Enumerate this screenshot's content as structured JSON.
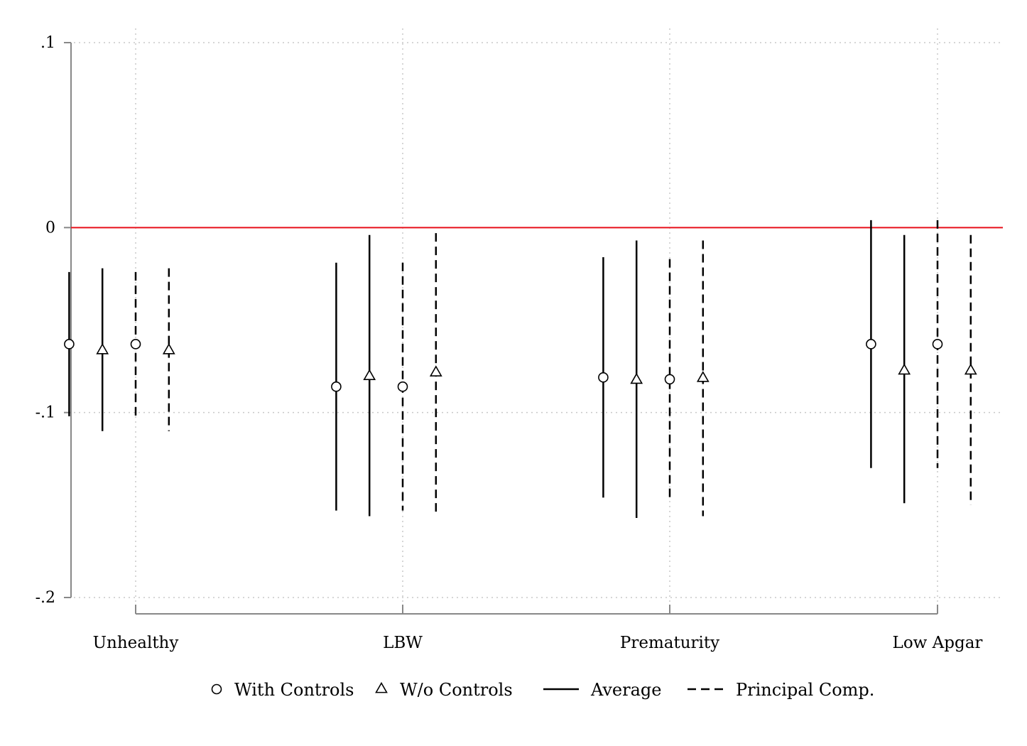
{
  "chart_data": {
    "type": "scatter",
    "title": "",
    "xlabel": "",
    "ylabel": "",
    "ylim": [
      -0.2,
      0.1
    ],
    "y_ticks": [
      {
        "value": 0.1,
        "label": ".1"
      },
      {
        "value": 0,
        "label": "0"
      },
      {
        "value": -0.1,
        "label": "-.1"
      },
      {
        "value": -0.2,
        "label": "-.2"
      }
    ],
    "categories": [
      "Unhealthy",
      "LBW",
      "Prematurity",
      "Low Apgar"
    ],
    "reference_line": {
      "y": 0,
      "color": "#e8101a"
    },
    "grid": true,
    "legend_position": "bottom",
    "legend": [
      {
        "marker": "circle",
        "label": "With Controls"
      },
      {
        "marker": "triangle",
        "label": "W/o Controls"
      },
      {
        "line": "solid",
        "label": "Average"
      },
      {
        "line": "dashed",
        "label": "Principal Comp."
      }
    ],
    "series": [
      {
        "label_key": "With Controls / Average",
        "marker": "circle",
        "line": "solid",
        "offset": -0.8,
        "points": [
          {
            "estimate": -0.063,
            "ci_low": -0.102,
            "ci_high": -0.024
          },
          {
            "estimate": -0.086,
            "ci_low": -0.153,
            "ci_high": -0.019
          },
          {
            "estimate": -0.081,
            "ci_low": -0.146,
            "ci_high": -0.016
          },
          {
            "estimate": -0.063,
            "ci_low": -0.13,
            "ci_high": 0.004
          }
        ]
      },
      {
        "label_key": "W/o Controls / Average",
        "marker": "triangle",
        "line": "solid",
        "offset": -0.4,
        "points": [
          {
            "estimate": -0.066,
            "ci_low": -0.11,
            "ci_high": -0.022
          },
          {
            "estimate": -0.08,
            "ci_low": -0.156,
            "ci_high": -0.004
          },
          {
            "estimate": -0.082,
            "ci_low": -0.157,
            "ci_high": -0.007
          },
          {
            "estimate": -0.077,
            "ci_low": -0.149,
            "ci_high": -0.004
          }
        ]
      },
      {
        "label_key": "With Controls / Principal Comp.",
        "marker": "circle",
        "line": "dashed",
        "offset": 0.0,
        "points": [
          {
            "estimate": -0.063,
            "ci_low": -0.102,
            "ci_high": -0.024
          },
          {
            "estimate": -0.086,
            "ci_low": -0.153,
            "ci_high": -0.019
          },
          {
            "estimate": -0.082,
            "ci_low": -0.146,
            "ci_high": -0.017
          },
          {
            "estimate": -0.063,
            "ci_low": -0.13,
            "ci_high": 0.004
          }
        ]
      },
      {
        "label_key": "W/o Controls / Principal Comp.",
        "marker": "triangle",
        "line": "dashed",
        "offset": 0.4,
        "points": [
          {
            "estimate": -0.066,
            "ci_low": -0.11,
            "ci_high": -0.022
          },
          {
            "estimate": -0.078,
            "ci_low": -0.156,
            "ci_high": -0.003
          },
          {
            "estimate": -0.081,
            "ci_low": -0.156,
            "ci_high": -0.007
          },
          {
            "estimate": -0.077,
            "ci_low": -0.15,
            "ci_high": -0.004
          }
        ]
      }
    ],
    "colors": {
      "marks": "#000000",
      "axis": "#888888",
      "grid": "#c8c8c8",
      "reference": "#e8101a"
    }
  }
}
